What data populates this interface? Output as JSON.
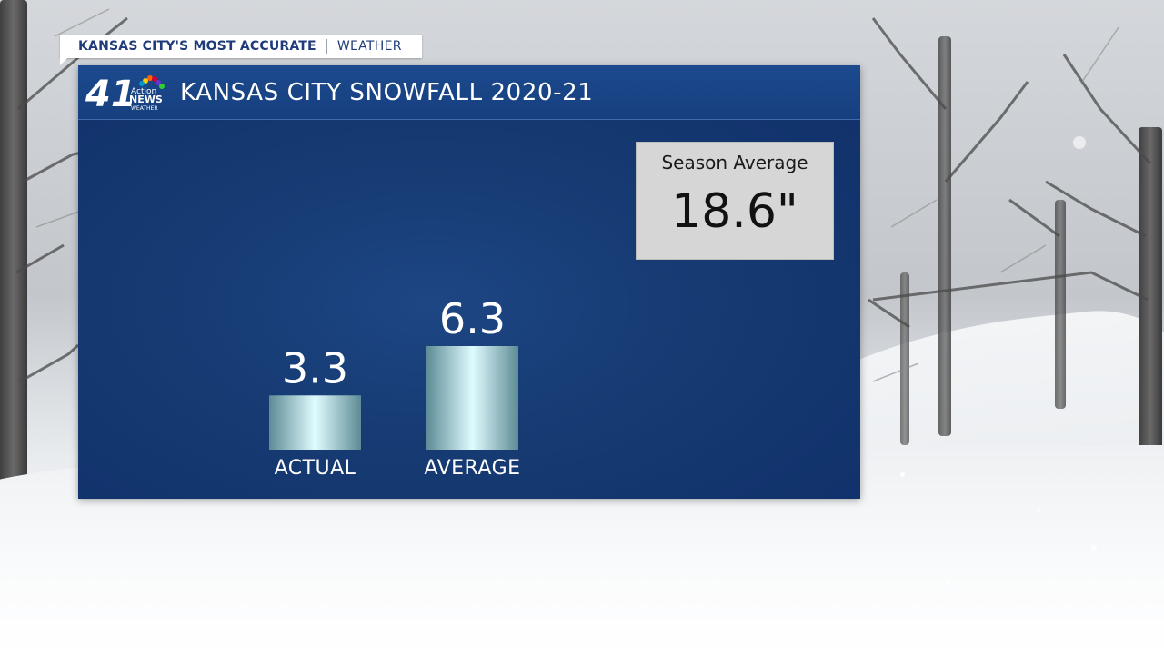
{
  "tag": {
    "left_text": "KANSAS CITY'S MOST ACCURATE",
    "right_text": "WEATHER"
  },
  "logo": {
    "number": "41",
    "line1": "Action",
    "line2": "NEWS",
    "line3": "WEATHER"
  },
  "title": "KANSAS CITY SNOWFALL 2020-21",
  "season_average": {
    "label": "Season Average",
    "value": "18.6\""
  },
  "colors": {
    "panel": "#163a72",
    "header": "#1c4a8e",
    "tag_text": "#1f3b7a",
    "bar_edge": "#6f9aa3",
    "bar_center": "#d8fbff",
    "box": "#d6d6d6"
  },
  "chart_data": {
    "type": "bar",
    "title": "KANSAS CITY SNOWFALL 2020-21",
    "categories": [
      "ACTUAL",
      "AVERAGE"
    ],
    "values": [
      3.3,
      6.3
    ],
    "value_labels": [
      "3.3",
      "6.3"
    ],
    "ylim": [
      0,
      6.3
    ],
    "grid": false
  }
}
